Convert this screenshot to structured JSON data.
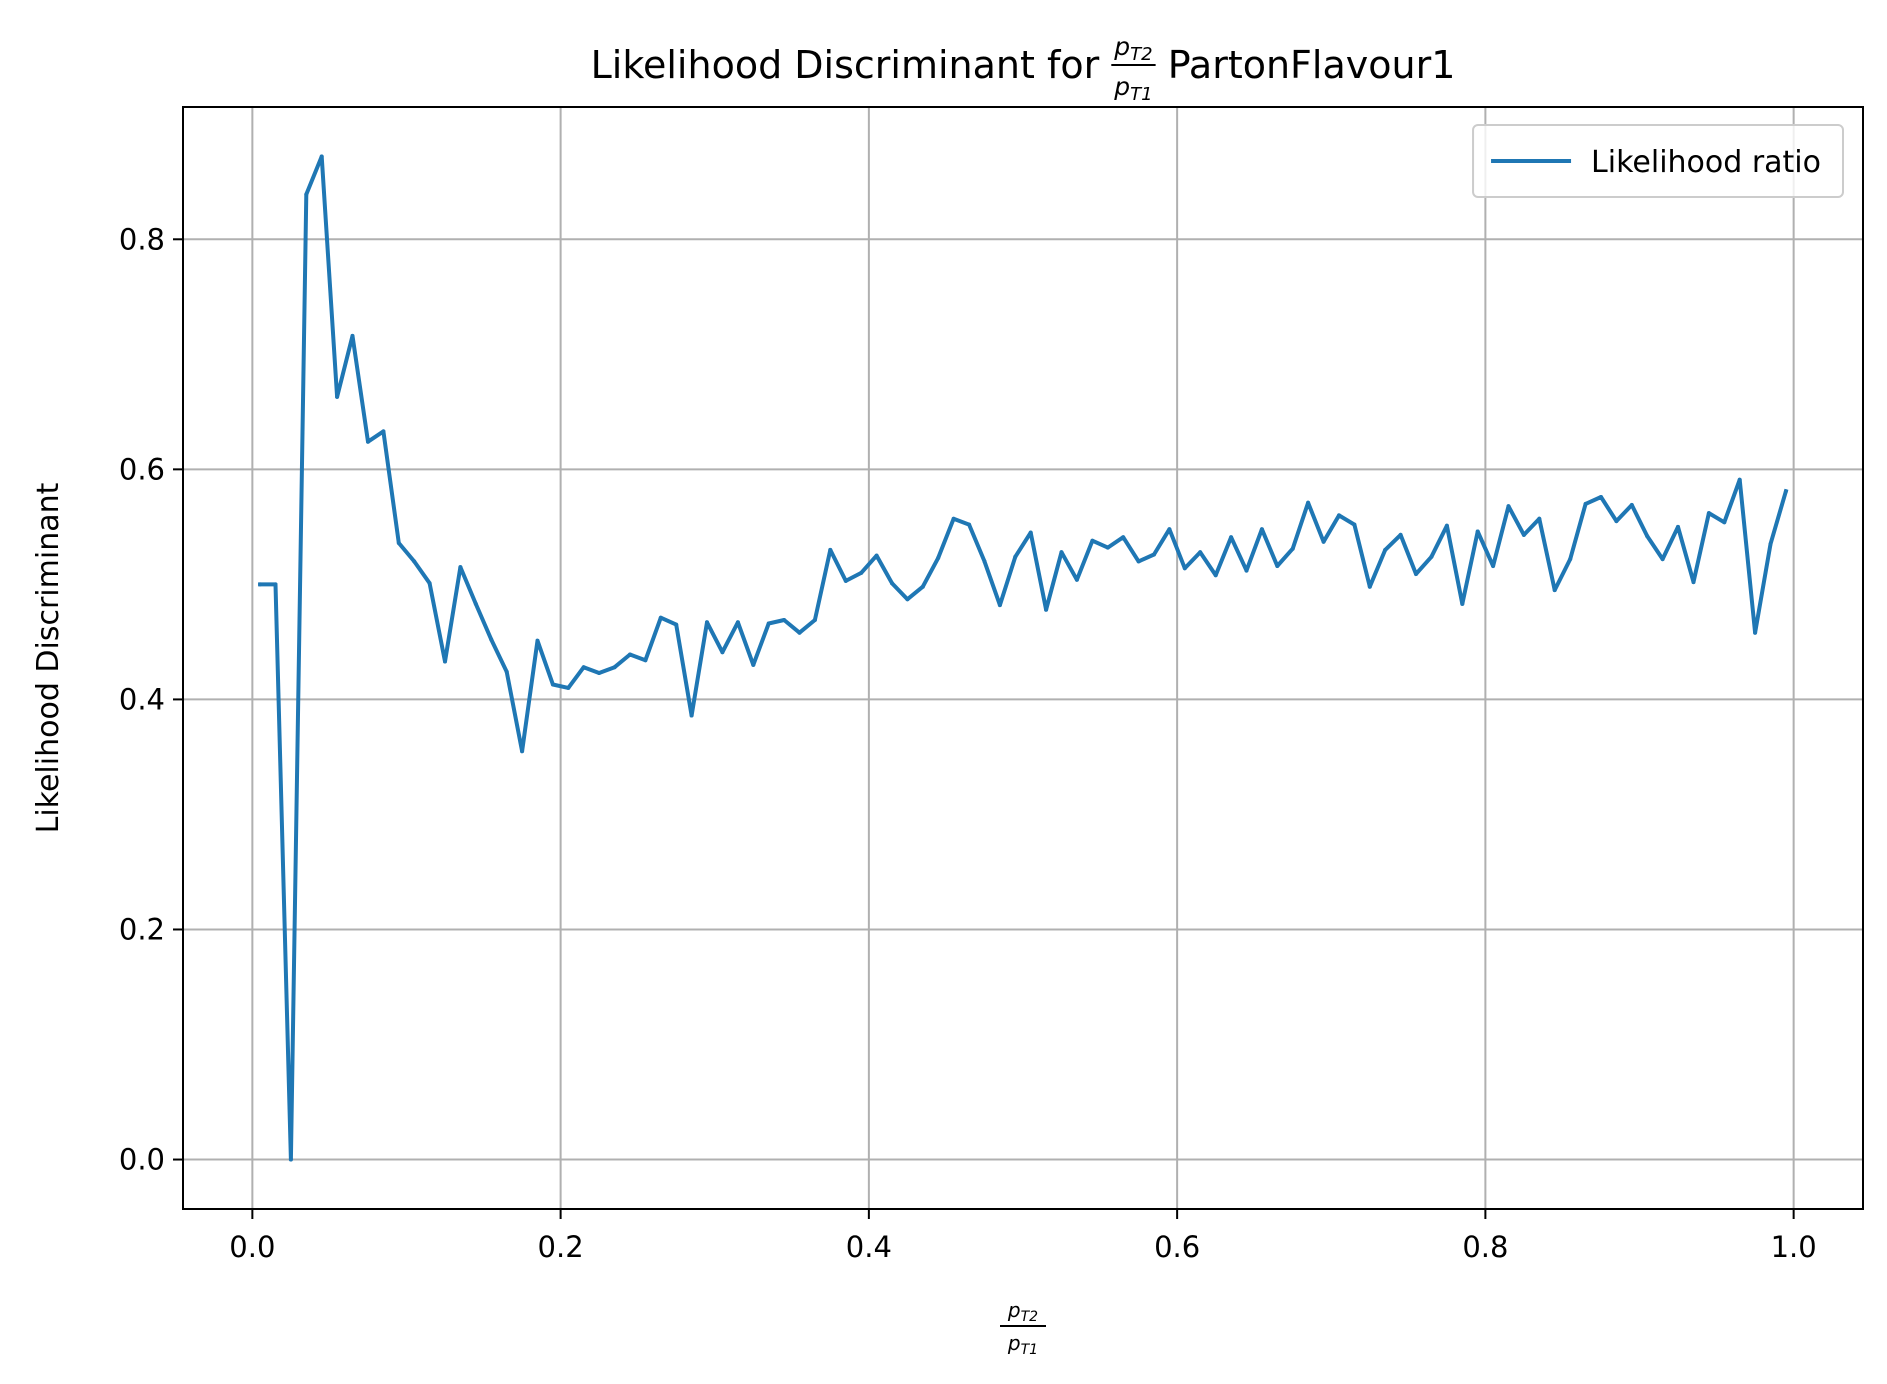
{
  "chart_data": {
    "type": "line",
    "title": {
      "prefix": "Likelihood Discriminant for ",
      "fraction": {
        "num_base": "p",
        "num_sub": "T2",
        "den_base": "p",
        "den_sub": "T1"
      },
      "suffix": " PartonFlavour1"
    },
    "xlabel": {
      "num_base": "p",
      "num_sub": "T2",
      "den_base": "p",
      "den_sub": "T1"
    },
    "ylabel": "Likelihood Discriminant",
    "xlim": [
      -0.045,
      1.045
    ],
    "ylim": [
      -0.043,
      0.915
    ],
    "xticks": [
      0.0,
      0.2,
      0.4,
      0.6,
      0.8,
      1.0
    ],
    "xtick_labels": [
      "0.0",
      "0.2",
      "0.4",
      "0.6",
      "0.8",
      "1.0"
    ],
    "yticks": [
      0.0,
      0.2,
      0.4,
      0.6,
      0.8
    ],
    "ytick_labels": [
      "0.0",
      "0.2",
      "0.4",
      "0.6",
      "0.8"
    ],
    "grid": true,
    "legend": {
      "position": "top-right"
    },
    "series": [
      {
        "name": "Likelihood ratio",
        "color": "#1f77b4",
        "x": [
          0.005,
          0.015,
          0.025,
          0.035,
          0.045,
          0.055,
          0.065,
          0.075,
          0.085,
          0.095,
          0.105,
          0.115,
          0.125,
          0.135,
          0.145,
          0.155,
          0.165,
          0.175,
          0.185,
          0.195,
          0.205,
          0.215,
          0.225,
          0.235,
          0.245,
          0.255,
          0.265,
          0.275,
          0.285,
          0.295,
          0.305,
          0.315,
          0.325,
          0.335,
          0.345,
          0.355,
          0.365,
          0.375,
          0.385,
          0.395,
          0.405,
          0.415,
          0.425,
          0.435,
          0.445,
          0.455,
          0.465,
          0.475,
          0.485,
          0.495,
          0.505,
          0.515,
          0.525,
          0.535,
          0.545,
          0.555,
          0.565,
          0.575,
          0.585,
          0.595,
          0.605,
          0.615,
          0.625,
          0.635,
          0.645,
          0.655,
          0.665,
          0.675,
          0.685,
          0.695,
          0.705,
          0.715,
          0.725,
          0.735,
          0.745,
          0.755,
          0.765,
          0.775,
          0.785,
          0.795,
          0.805,
          0.815,
          0.825,
          0.835,
          0.845,
          0.855,
          0.865,
          0.875,
          0.885,
          0.895,
          0.905,
          0.915,
          0.925,
          0.935,
          0.945,
          0.955,
          0.965,
          0.975,
          0.985,
          0.995
        ],
        "y": [
          0.5,
          0.5,
          0.0,
          0.839,
          0.872,
          0.663,
          0.716,
          0.624,
          0.633,
          0.536,
          0.52,
          0.501,
          0.433,
          0.515,
          0.483,
          0.452,
          0.424,
          0.355,
          0.451,
          0.413,
          0.41,
          0.428,
          0.423,
          0.428,
          0.439,
          0.434,
          0.471,
          0.465,
          0.386,
          0.467,
          0.441,
          0.467,
          0.43,
          0.466,
          0.469,
          0.458,
          0.469,
          0.53,
          0.503,
          0.51,
          0.525,
          0.501,
          0.487,
          0.498,
          0.523,
          0.557,
          0.552,
          0.52,
          0.482,
          0.524,
          0.545,
          0.478,
          0.528,
          0.504,
          0.538,
          0.532,
          0.541,
          0.52,
          0.526,
          0.548,
          0.514,
          0.528,
          0.508,
          0.541,
          0.512,
          0.548,
          0.516,
          0.531,
          0.571,
          0.537,
          0.56,
          0.552,
          0.498,
          0.53,
          0.543,
          0.509,
          0.524,
          0.551,
          0.483,
          0.546,
          0.516,
          0.568,
          0.543,
          0.557,
          0.495,
          0.522,
          0.57,
          0.576,
          0.555,
          0.569,
          0.542,
          0.522,
          0.55,
          0.502,
          0.562,
          0.554,
          0.591,
          0.458,
          0.535,
          0.581
        ]
      }
    ]
  }
}
